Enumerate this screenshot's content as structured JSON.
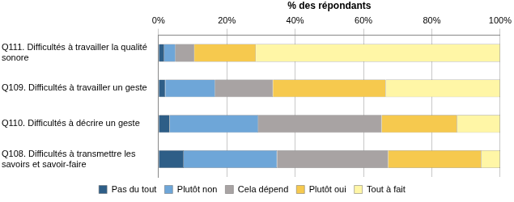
{
  "chart_data": {
    "type": "bar",
    "orientation": "horizontal",
    "stacked": true,
    "x_label": "% des répondants",
    "categories": [
      "Q111. Difficultés à travailler la qualité sonore",
      "Q109. Difficultés à travailler un geste",
      "Q110. Difficultés à décrire un geste",
      "Q108. Difficultés à transmettre les savoirs et savoir-faire"
    ],
    "series": [
      {
        "name": "Pas du tout",
        "color": "#2e5e87",
        "values": [
          1.7,
          2,
          3.3,
          7.4
        ]
      },
      {
        "name": "Plutôt non",
        "color": "#6ea6d8",
        "values": [
          3.3,
          14.6,
          25.9,
          27.3
        ]
      },
      {
        "name": "Cela dépend",
        "color": "#a8a3a3",
        "values": [
          5.5,
          16.9,
          36.1,
          32.5
        ]
      },
      {
        "name": "Plutôt oui",
        "color": "#f6c94e",
        "values": [
          18,
          33,
          22.1,
          27.3
        ]
      },
      {
        "name": "Tout à fait",
        "color": "#fff6a6",
        "values": [
          71.5,
          33.5,
          12.6,
          5.5
        ]
      }
    ],
    "xlim": [
      0,
      100
    ],
    "xticks": [
      {
        "value": 0,
        "label": "0%"
      },
      {
        "value": 20,
        "label": "20%"
      },
      {
        "value": 40,
        "label": "40%"
      },
      {
        "value": 60,
        "label": "60%"
      },
      {
        "value": 80,
        "label": "80%"
      },
      {
        "value": 100,
        "label": "100%"
      }
    ],
    "grid": true,
    "legend": "bottom"
  }
}
